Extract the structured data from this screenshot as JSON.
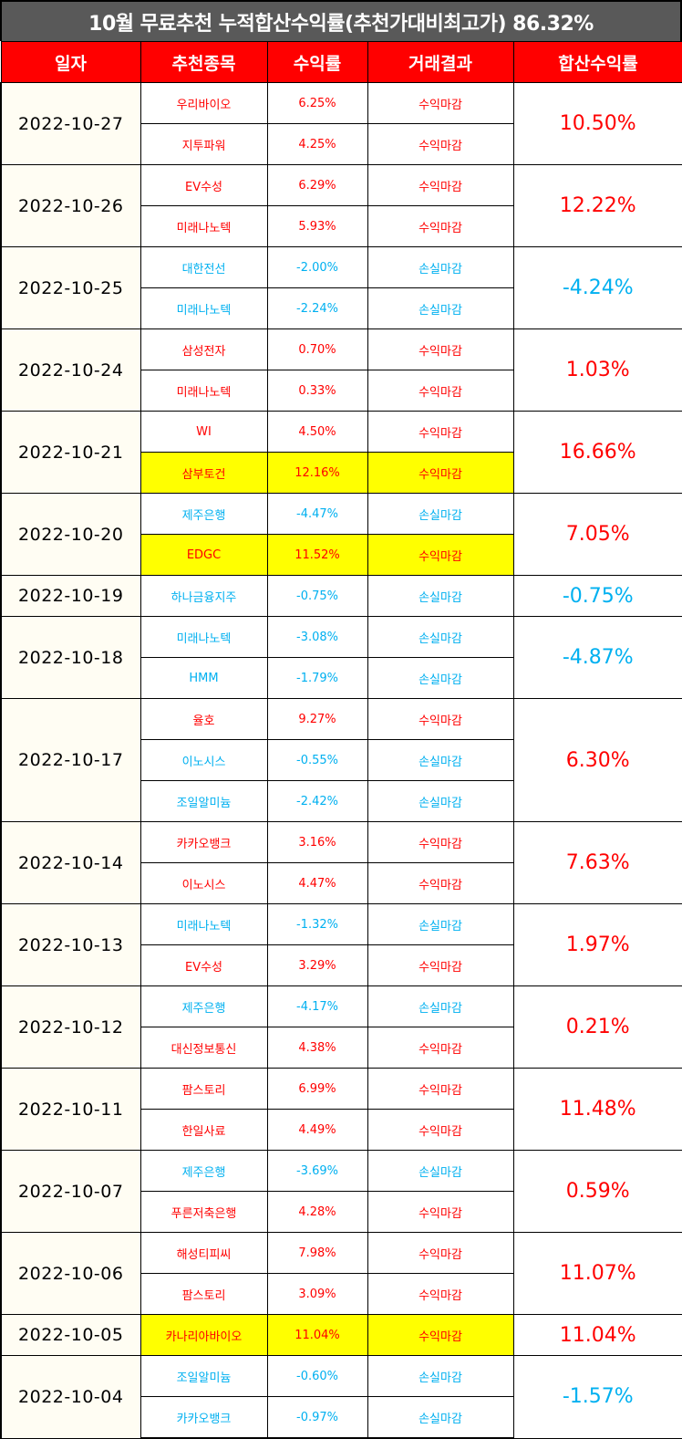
{
  "title": "10월 무료추천 누적합산수익률(추천가대비최고가) 86.32%",
  "headers": [
    "일자",
    "추천종목",
    "수익률",
    "거래결과",
    "합산수익률"
  ],
  "colors": {
    "positive": "#ff0000",
    "negative": "#00b0f0",
    "highlight": "#ffff00",
    "header": "#ff0000",
    "title_bg": "#595959"
  },
  "groups": [
    {
      "date": "2022-10-27",
      "total": "10.50%",
      "total_sign": "pos",
      "rows": [
        {
          "stock": "우리바이오",
          "rate": "6.25%",
          "result": "수익마감",
          "sign": "pos",
          "hl": false
        },
        {
          "stock": "지투파워",
          "rate": "4.25%",
          "result": "수익마감",
          "sign": "pos",
          "hl": false
        }
      ]
    },
    {
      "date": "2022-10-26",
      "total": "12.22%",
      "total_sign": "pos",
      "rows": [
        {
          "stock": "EV수성",
          "rate": "6.29%",
          "result": "수익마감",
          "sign": "pos",
          "hl": false
        },
        {
          "stock": "미래나노텍",
          "rate": "5.93%",
          "result": "수익마감",
          "sign": "pos",
          "hl": false
        }
      ]
    },
    {
      "date": "2022-10-25",
      "total": "-4.24%",
      "total_sign": "neg",
      "rows": [
        {
          "stock": "대한전선",
          "rate": "-2.00%",
          "result": "손실마감",
          "sign": "neg",
          "hl": false
        },
        {
          "stock": "미래나노텍",
          "rate": "-2.24%",
          "result": "손실마감",
          "sign": "neg",
          "hl": false
        }
      ]
    },
    {
      "date": "2022-10-24",
      "total": "1.03%",
      "total_sign": "pos",
      "rows": [
        {
          "stock": "삼성전자",
          "rate": "0.70%",
          "result": "수익마감",
          "sign": "pos",
          "hl": false
        },
        {
          "stock": "미래나노텍",
          "rate": "0.33%",
          "result": "수익마감",
          "sign": "pos",
          "hl": false
        }
      ]
    },
    {
      "date": "2022-10-21",
      "total": "16.66%",
      "total_sign": "pos",
      "rows": [
        {
          "stock": "WI",
          "rate": "4.50%",
          "result": "수익마감",
          "sign": "pos",
          "hl": false
        },
        {
          "stock": "삼부토건",
          "rate": "12.16%",
          "result": "수익마감",
          "sign": "pos",
          "hl": true
        }
      ]
    },
    {
      "date": "2022-10-20",
      "total": "7.05%",
      "total_sign": "pos",
      "rows": [
        {
          "stock": "제주은행",
          "rate": "-4.47%",
          "result": "손실마감",
          "sign": "neg",
          "hl": false
        },
        {
          "stock": "EDGC",
          "rate": "11.52%",
          "result": "수익마감",
          "sign": "pos",
          "hl": true
        }
      ]
    },
    {
      "date": "2022-10-19",
      "total": "-0.75%",
      "total_sign": "neg",
      "rows": [
        {
          "stock": "하나금융지주",
          "rate": "-0.75%",
          "result": "손실마감",
          "sign": "neg",
          "hl": false
        }
      ]
    },
    {
      "date": "2022-10-18",
      "total": "-4.87%",
      "total_sign": "neg",
      "rows": [
        {
          "stock": "미래나노텍",
          "rate": "-3.08%",
          "result": "손실마감",
          "sign": "neg",
          "hl": false
        },
        {
          "stock": "HMM",
          "rate": "-1.79%",
          "result": "손실마감",
          "sign": "neg",
          "hl": false
        }
      ]
    },
    {
      "date": "2022-10-17",
      "total": "6.30%",
      "total_sign": "pos",
      "rows": [
        {
          "stock": "율호",
          "rate": "9.27%",
          "result": "수익마감",
          "sign": "pos",
          "hl": false
        },
        {
          "stock": "이노시스",
          "rate": "-0.55%",
          "result": "손실마감",
          "sign": "neg",
          "hl": false
        },
        {
          "stock": "조일알미늄",
          "rate": "-2.42%",
          "result": "손실마감",
          "sign": "neg",
          "hl": false
        }
      ]
    },
    {
      "date": "2022-10-14",
      "total": "7.63%",
      "total_sign": "pos",
      "rows": [
        {
          "stock": "카카오뱅크",
          "rate": "3.16%",
          "result": "수익마감",
          "sign": "pos",
          "hl": false
        },
        {
          "stock": "이노시스",
          "rate": "4.47%",
          "result": "수익마감",
          "sign": "pos",
          "hl": false
        }
      ]
    },
    {
      "date": "2022-10-13",
      "total": "1.97%",
      "total_sign": "pos",
      "rows": [
        {
          "stock": "미래나노텍",
          "rate": "-1.32%",
          "result": "손실마감",
          "sign": "neg",
          "hl": false
        },
        {
          "stock": "EV수성",
          "rate": "3.29%",
          "result": "수익마감",
          "sign": "pos",
          "hl": false
        }
      ]
    },
    {
      "date": "2022-10-12",
      "total": "0.21%",
      "total_sign": "pos",
      "rows": [
        {
          "stock": "제주은행",
          "rate": "-4.17%",
          "result": "손실마감",
          "sign": "neg",
          "hl": false
        },
        {
          "stock": "대신정보통신",
          "rate": "4.38%",
          "result": "수익마감",
          "sign": "pos",
          "hl": false
        }
      ]
    },
    {
      "date": "2022-10-11",
      "total": "11.48%",
      "total_sign": "pos",
      "rows": [
        {
          "stock": "팜스토리",
          "rate": "6.99%",
          "result": "수익마감",
          "sign": "pos",
          "hl": false
        },
        {
          "stock": "한일사료",
          "rate": "4.49%",
          "result": "수익마감",
          "sign": "pos",
          "hl": false
        }
      ]
    },
    {
      "date": "2022-10-07",
      "total": "0.59%",
      "total_sign": "pos",
      "rows": [
        {
          "stock": "제주은행",
          "rate": "-3.69%",
          "result": "손실마감",
          "sign": "neg",
          "hl": false
        },
        {
          "stock": "푸른저축은행",
          "rate": "4.28%",
          "result": "수익마감",
          "sign": "pos",
          "hl": false
        }
      ]
    },
    {
      "date": "2022-10-06",
      "total": "11.07%",
      "total_sign": "pos",
      "rows": [
        {
          "stock": "해성티피씨",
          "rate": "7.98%",
          "result": "수익마감",
          "sign": "pos",
          "hl": false
        },
        {
          "stock": "팜스토리",
          "rate": "3.09%",
          "result": "수익마감",
          "sign": "pos",
          "hl": false
        }
      ]
    },
    {
      "date": "2022-10-05",
      "total": "11.04%",
      "total_sign": "pos",
      "rows": [
        {
          "stock": "카나리아바이오",
          "rate": "11.04%",
          "result": "수익마감",
          "sign": "pos",
          "hl": true
        }
      ]
    },
    {
      "date": "2022-10-04",
      "total": "-1.57%",
      "total_sign": "neg",
      "rows": [
        {
          "stock": "조일알미늄",
          "rate": "-0.60%",
          "result": "손실마감",
          "sign": "neg",
          "hl": false
        },
        {
          "stock": "카카오뱅크",
          "rate": "-0.97%",
          "result": "손실마감",
          "sign": "neg",
          "hl": false
        }
      ]
    }
  ]
}
